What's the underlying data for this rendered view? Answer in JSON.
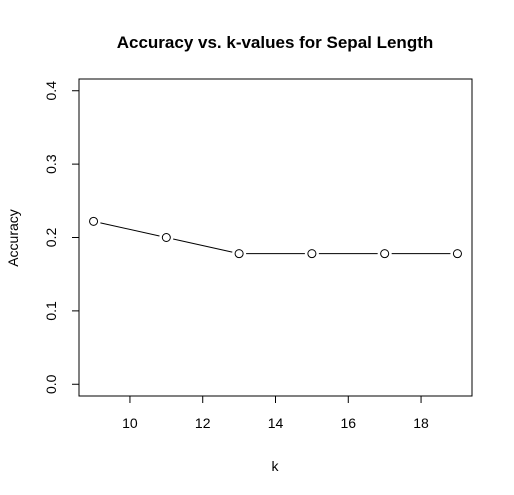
{
  "chart_data": {
    "type": "line",
    "title": "Accuracy vs. k-values for Sepal Length",
    "xlabel": "k",
    "ylabel": "Accuracy",
    "x": [
      9,
      11,
      13,
      15,
      17,
      19
    ],
    "series": [
      {
        "values": [
          0.222,
          0.2,
          0.178,
          0.178,
          0.178,
          0.178
        ]
      }
    ],
    "xlim": [
      8.6,
      19.4
    ],
    "ylim": [
      -0.016,
      0.416
    ],
    "xticks": [
      10,
      12,
      14,
      16,
      18
    ],
    "xtick_labels": [
      "10",
      "12",
      "14",
      "16",
      "18"
    ],
    "yticks": [
      0.0,
      0.1,
      0.2,
      0.3,
      0.4
    ],
    "ytick_labels": [
      "0.0",
      "0.1",
      "0.2",
      "0.3",
      "0.4"
    ],
    "marker": "open-circle",
    "grid": false,
    "line_color": "#000000"
  }
}
